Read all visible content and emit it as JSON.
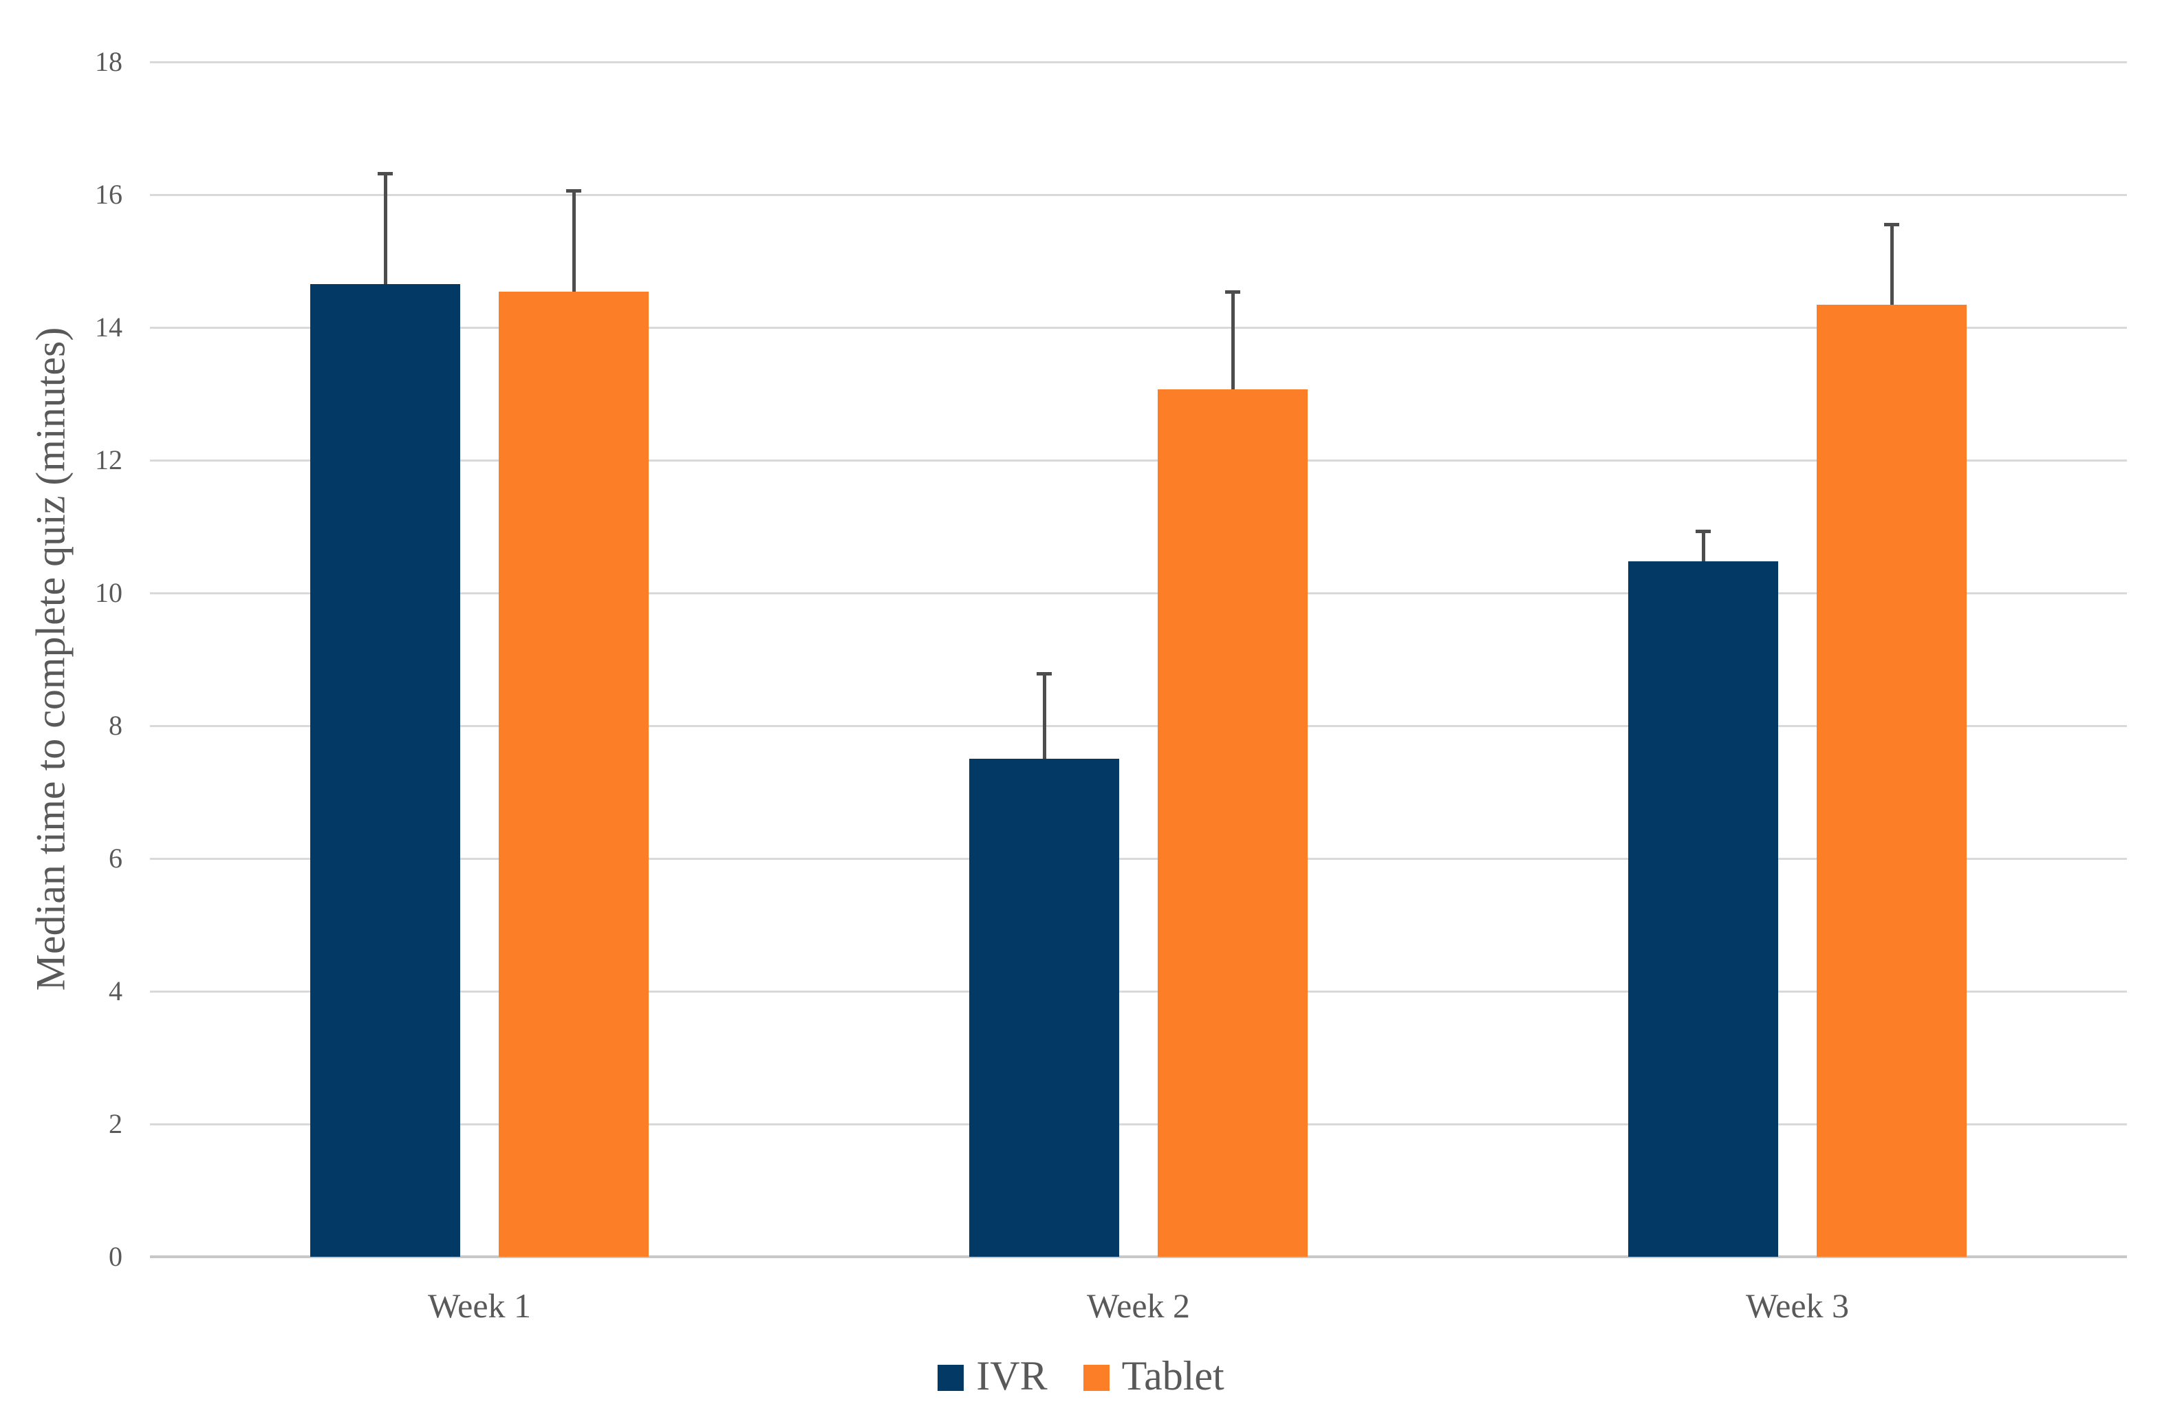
{
  "chart_data": {
    "type": "bar",
    "title": "",
    "xlabel": "",
    "ylabel": "Median time to complete quiz (minutes)",
    "categories": [
      "Week 1",
      "Week 2",
      "Week 3"
    ],
    "series": [
      {
        "name": "IVR",
        "color": "#033A65",
        "values": [
          14.65,
          7.5,
          10.48
        ],
        "errors_up": [
          1.67,
          1.28,
          0.45
        ]
      },
      {
        "name": "Tablet",
        "color": "#FC7E26",
        "values": [
          14.54,
          13.07,
          14.34
        ],
        "errors_up": [
          1.52,
          1.46,
          1.21
        ]
      }
    ],
    "ylim": [
      0,
      18
    ],
    "yticks": [
      0,
      2,
      4,
      6,
      8,
      10,
      12,
      14,
      16,
      18
    ],
    "grid": true,
    "legend_position": "bottom",
    "error_bars": "upper-only",
    "error_bar_color": "#4D4D4D",
    "gridline_color": "#D9D9D9",
    "axis_text_color": "#595959",
    "background_color": "#FFFFFF"
  }
}
